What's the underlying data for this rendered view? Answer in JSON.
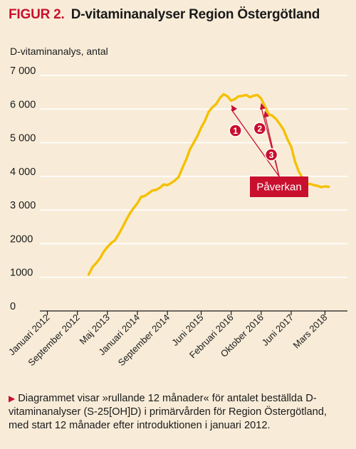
{
  "header": {
    "figure_label": "FIGUR 2.",
    "title": "D-vitaminanalyser Region Östergötland"
  },
  "caption": {
    "marker": "▶",
    "text": "Diagrammet visar »rullande 12 månader« för antalet beställda D-vitaminanalyser (S-25[OH]D) i primärvården för Region Östergötland, med start 12 månader efter introduktionen i januari 2012."
  },
  "chart_data": {
    "type": "line",
    "title": "D-vitaminanalyser Region Östergötland",
    "ylabel": "D-vitaminanalys, antal",
    "xlabel": "",
    "ylim": [
      0,
      7000
    ],
    "yticks": [
      0,
      1000,
      2000,
      3000,
      4000,
      5000,
      6000,
      7000
    ],
    "ytick_labels": [
      "0",
      "1000",
      "2000",
      "3 000",
      "4 000",
      "5 000",
      "6 000",
      "7 000"
    ],
    "grid": "horizontal",
    "x_range": [
      "2011-11",
      "2018-09"
    ],
    "xticks": [
      {
        "date": "2012-01",
        "label": "Januari 2012"
      },
      {
        "date": "2012-09",
        "label": "September 2012"
      },
      {
        "date": "2013-05",
        "label": "Maj 2013"
      },
      {
        "date": "2014-01",
        "label": "Januari 2014"
      },
      {
        "date": "2014-09",
        "label": "September 2014"
      },
      {
        "date": "2015-06",
        "label": "Juni 2015"
      },
      {
        "date": "2016-02",
        "label": "Februari 2016"
      },
      {
        "date": "2016-10",
        "label": "Oktober 2016"
      },
      {
        "date": "2017-06",
        "label": "Juni 2017"
      },
      {
        "date": "2018-03",
        "label": "Mars 2018"
      }
    ],
    "series": [
      {
        "color": "#f5c000",
        "points": [
          [
            "2012-12",
            1080
          ],
          [
            "2013-01",
            1300
          ],
          [
            "2013-02",
            1420
          ],
          [
            "2013-03",
            1560
          ],
          [
            "2013-04",
            1760
          ],
          [
            "2013-05",
            1900
          ],
          [
            "2013-06",
            2020
          ],
          [
            "2013-07",
            2100
          ],
          [
            "2013-08",
            2280
          ],
          [
            "2013-09",
            2480
          ],
          [
            "2013-10",
            2700
          ],
          [
            "2013-11",
            2900
          ],
          [
            "2013-12",
            3060
          ],
          [
            "2014-01",
            3200
          ],
          [
            "2014-02",
            3390
          ],
          [
            "2014-03",
            3420
          ],
          [
            "2014-04",
            3500
          ],
          [
            "2014-05",
            3580
          ],
          [
            "2014-06",
            3600
          ],
          [
            "2014-07",
            3660
          ],
          [
            "2014-08",
            3760
          ],
          [
            "2014-09",
            3740
          ],
          [
            "2014-10",
            3800
          ],
          [
            "2014-11",
            3880
          ],
          [
            "2014-12",
            3980
          ],
          [
            "2015-01",
            4250
          ],
          [
            "2015-02",
            4500
          ],
          [
            "2015-03",
            4800
          ],
          [
            "2015-04",
            5000
          ],
          [
            "2015-05",
            5200
          ],
          [
            "2015-06",
            5450
          ],
          [
            "2015-07",
            5650
          ],
          [
            "2015-08",
            5920
          ],
          [
            "2015-09",
            6050
          ],
          [
            "2015-10",
            6150
          ],
          [
            "2015-11",
            6330
          ],
          [
            "2015-12",
            6440
          ],
          [
            "2016-01",
            6380
          ],
          [
            "2016-02",
            6250
          ],
          [
            "2016-03",
            6300
          ],
          [
            "2016-04",
            6380
          ],
          [
            "2016-05",
            6390
          ],
          [
            "2016-06",
            6420
          ],
          [
            "2016-07",
            6350
          ],
          [
            "2016-08",
            6400
          ],
          [
            "2016-09",
            6420
          ],
          [
            "2016-10",
            6310
          ],
          [
            "2016-11",
            6080
          ],
          [
            "2016-12",
            5850
          ],
          [
            "2017-01",
            5800
          ],
          [
            "2017-02",
            5700
          ],
          [
            "2017-03",
            5550
          ],
          [
            "2017-04",
            5380
          ],
          [
            "2017-05",
            5100
          ],
          [
            "2017-06",
            4880
          ],
          [
            "2017-07",
            4450
          ],
          [
            "2017-08",
            4150
          ],
          [
            "2017-09",
            3950
          ],
          [
            "2017-10",
            3760
          ],
          [
            "2017-11",
            3780
          ],
          [
            "2017-12",
            3740
          ],
          [
            "2018-01",
            3720
          ],
          [
            "2018-02",
            3680
          ],
          [
            "2018-03",
            3700
          ],
          [
            "2018-04",
            3690
          ]
        ]
      }
    ],
    "annotations": {
      "box_label": "Påverkan",
      "box_color": "#c8102e",
      "markers": [
        {
          "label": "1",
          "date": "2016-02",
          "y": 6250
        },
        {
          "label": "2",
          "date": "2016-10",
          "y": 6310
        },
        {
          "label": "3",
          "date": "2016-11",
          "y": 6080
        }
      ]
    }
  }
}
